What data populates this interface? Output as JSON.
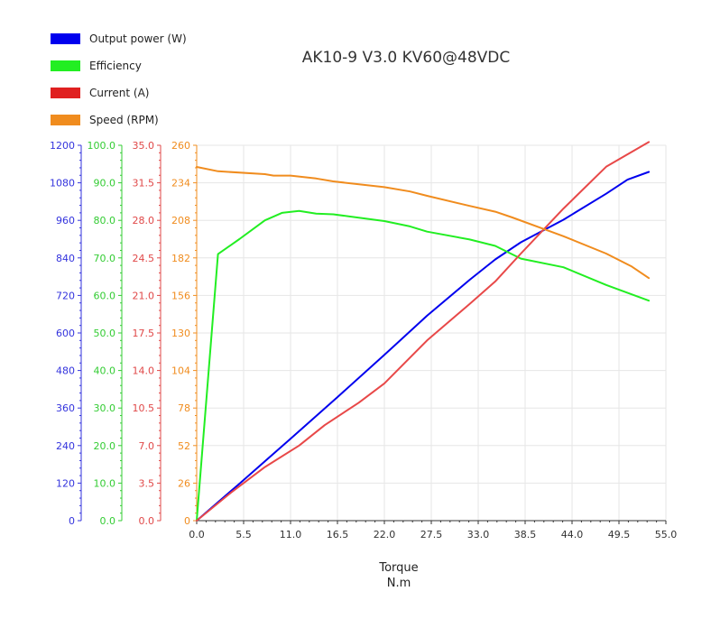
{
  "chart_data": {
    "type": "line",
    "title": "AK10-9 V3.0 KV60@48VDC",
    "xlabel": "Torque",
    "xlabel_unit": "N.m",
    "xlim": [
      0,
      55
    ],
    "xticks": [
      "0.0",
      "5.5",
      "11.0",
      "16.5",
      "22.0",
      "27.5",
      "33.0",
      "38.5",
      "44.0",
      "49.5",
      "55.0"
    ],
    "grid": true,
    "legend_position": "top-left",
    "axes": [
      {
        "id": "power",
        "color": "#3333dd",
        "ylim": [
          0,
          1200
        ],
        "ticks": [
          "0",
          "120",
          "240",
          "360",
          "480",
          "600",
          "720",
          "840",
          "960",
          "1080",
          "1200"
        ]
      },
      {
        "id": "eff",
        "color": "#33cc33",
        "ylim": [
          0,
          100
        ],
        "ticks": [
          "0.0",
          "10.0",
          "20.0",
          "30.0",
          "40.0",
          "50.0",
          "60.0",
          "70.0",
          "80.0",
          "90.0",
          "100.0"
        ]
      },
      {
        "id": "current",
        "color": "#e04848",
        "ylim": [
          0,
          35
        ],
        "ticks": [
          "0.0",
          "3.5",
          "7.0",
          "10.5",
          "14.0",
          "17.5",
          "21.0",
          "24.5",
          "28.0",
          "31.5",
          "35.0"
        ]
      },
      {
        "id": "speed",
        "color": "#f08c1e",
        "ylim": [
          0,
          260
        ],
        "ticks": [
          "0",
          "26",
          "52",
          "78",
          "104",
          "130",
          "156",
          "182",
          "208",
          "234",
          "260"
        ]
      }
    ],
    "series": [
      {
        "name": "Output power (W)",
        "axis": "power",
        "color": "#0000ee",
        "x": [
          0,
          5,
          11,
          16.5,
          22,
          27,
          32,
          35,
          38,
          43,
          48,
          50.5,
          53
        ],
        "y": [
          0,
          118,
          262,
          395,
          530,
          655,
          770,
          835,
          890,
          962,
          1045,
          1090,
          1115
        ]
      },
      {
        "name": "Efficiency",
        "axis": "eff",
        "color": "#22ee22",
        "x": [
          0,
          2.5,
          5,
          8,
          10,
          12,
          14,
          16,
          18,
          20,
          22,
          25,
          27,
          32,
          35,
          38,
          43,
          48,
          53
        ],
        "y": [
          0,
          71,
          75,
          80,
          82,
          82.5,
          81.8,
          81.6,
          81,
          80.4,
          79.8,
          78.4,
          77,
          74.9,
          73.2,
          69.8,
          67.5,
          62.8,
          58.6
        ]
      },
      {
        "name": "Current (A)",
        "axis": "current",
        "color": "#e84848",
        "x": [
          0,
          4,
          8,
          12,
          15,
          19,
          22,
          25,
          27,
          32,
          35,
          38,
          43,
          48,
          53
        ],
        "y": [
          0,
          2.6,
          5,
          7,
          8.9,
          11,
          12.8,
          15.2,
          16.8,
          20.2,
          22.3,
          24.9,
          29.1,
          33,
          35.3
        ]
      },
      {
        "name": "Speed (RPM)",
        "axis": "speed",
        "color": "#f08c1e",
        "x": [
          0,
          2.5,
          8,
          9,
          11,
          14,
          16,
          22,
          25,
          27,
          32,
          35,
          37,
          43,
          48,
          51,
          53
        ],
        "y": [
          245,
          242,
          240,
          239,
          239,
          237,
          235,
          231,
          228,
          225,
          218,
          214,
          210,
          197,
          185,
          176,
          168
        ]
      }
    ]
  }
}
